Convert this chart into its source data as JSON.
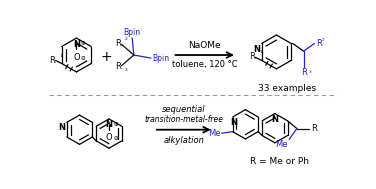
{
  "bg_color": "#ffffff",
  "black": "#000000",
  "blue": "#2222cc",
  "gray": "#999999",
  "dark": "#111111",
  "top_arrow_label1": "NaOMe",
  "top_arrow_label2": "toluene, 120 °C",
  "top_examples": "33 examples",
  "bot_arrow_label1": "sequential",
  "bot_arrow_label2": "transition-metal-free",
  "bot_arrow_label3": "alkylation",
  "bot_rgroup": "R = Me or Ph"
}
